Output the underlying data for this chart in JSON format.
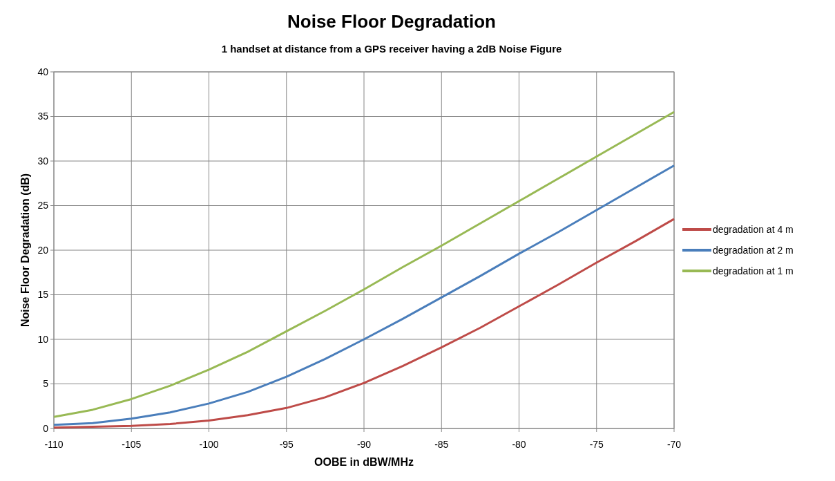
{
  "chart_data": {
    "type": "line",
    "title": "Noise Floor Degradation",
    "subtitle": "1 handset at distance from a GPS receiver having a 2dB Noise Figure",
    "xlabel": "OOBE in dBW/MHz",
    "ylabel": "Noise Floor Degradation (dB)",
    "x": [
      -110,
      -107.5,
      -105,
      -102.5,
      -100,
      -97.5,
      -95,
      -92.5,
      -90,
      -87.5,
      -85,
      -82.5,
      -80,
      -77.5,
      -75,
      -72.5,
      -70
    ],
    "series": [
      {
        "name": "degradation at 4 m",
        "color": "#be4b48",
        "values": [
          0.1,
          0.2,
          0.3,
          0.5,
          0.9,
          1.5,
          2.3,
          3.5,
          5.1,
          7.0,
          9.1,
          11.3,
          13.7,
          16.1,
          18.6,
          21.0,
          23.5
        ]
      },
      {
        "name": "degradation at 2 m",
        "color": "#4a7ebb",
        "values": [
          0.4,
          0.6,
          1.1,
          1.8,
          2.8,
          4.1,
          5.8,
          7.8,
          10.0,
          12.3,
          14.7,
          17.1,
          19.6,
          22.0,
          24.5,
          27.0,
          29.5
        ]
      },
      {
        "name": "degradation at 1 m",
        "color": "#98b954",
        "values": [
          1.3,
          2.1,
          3.3,
          4.8,
          6.6,
          8.6,
          10.9,
          13.2,
          15.6,
          18.1,
          20.5,
          23.0,
          25.5,
          28.0,
          30.5,
          33.0,
          35.5
        ]
      }
    ],
    "xlim": [
      -110,
      -70
    ],
    "xticks": [
      -110,
      -105,
      -100,
      -95,
      -90,
      -85,
      -80,
      -75,
      -70
    ],
    "ylim": [
      0,
      40
    ],
    "yticks": [
      0,
      5,
      10,
      15,
      20,
      25,
      30,
      35,
      40
    ],
    "grid": true,
    "legend": "right",
    "marker": "none",
    "line_style": "solid"
  }
}
